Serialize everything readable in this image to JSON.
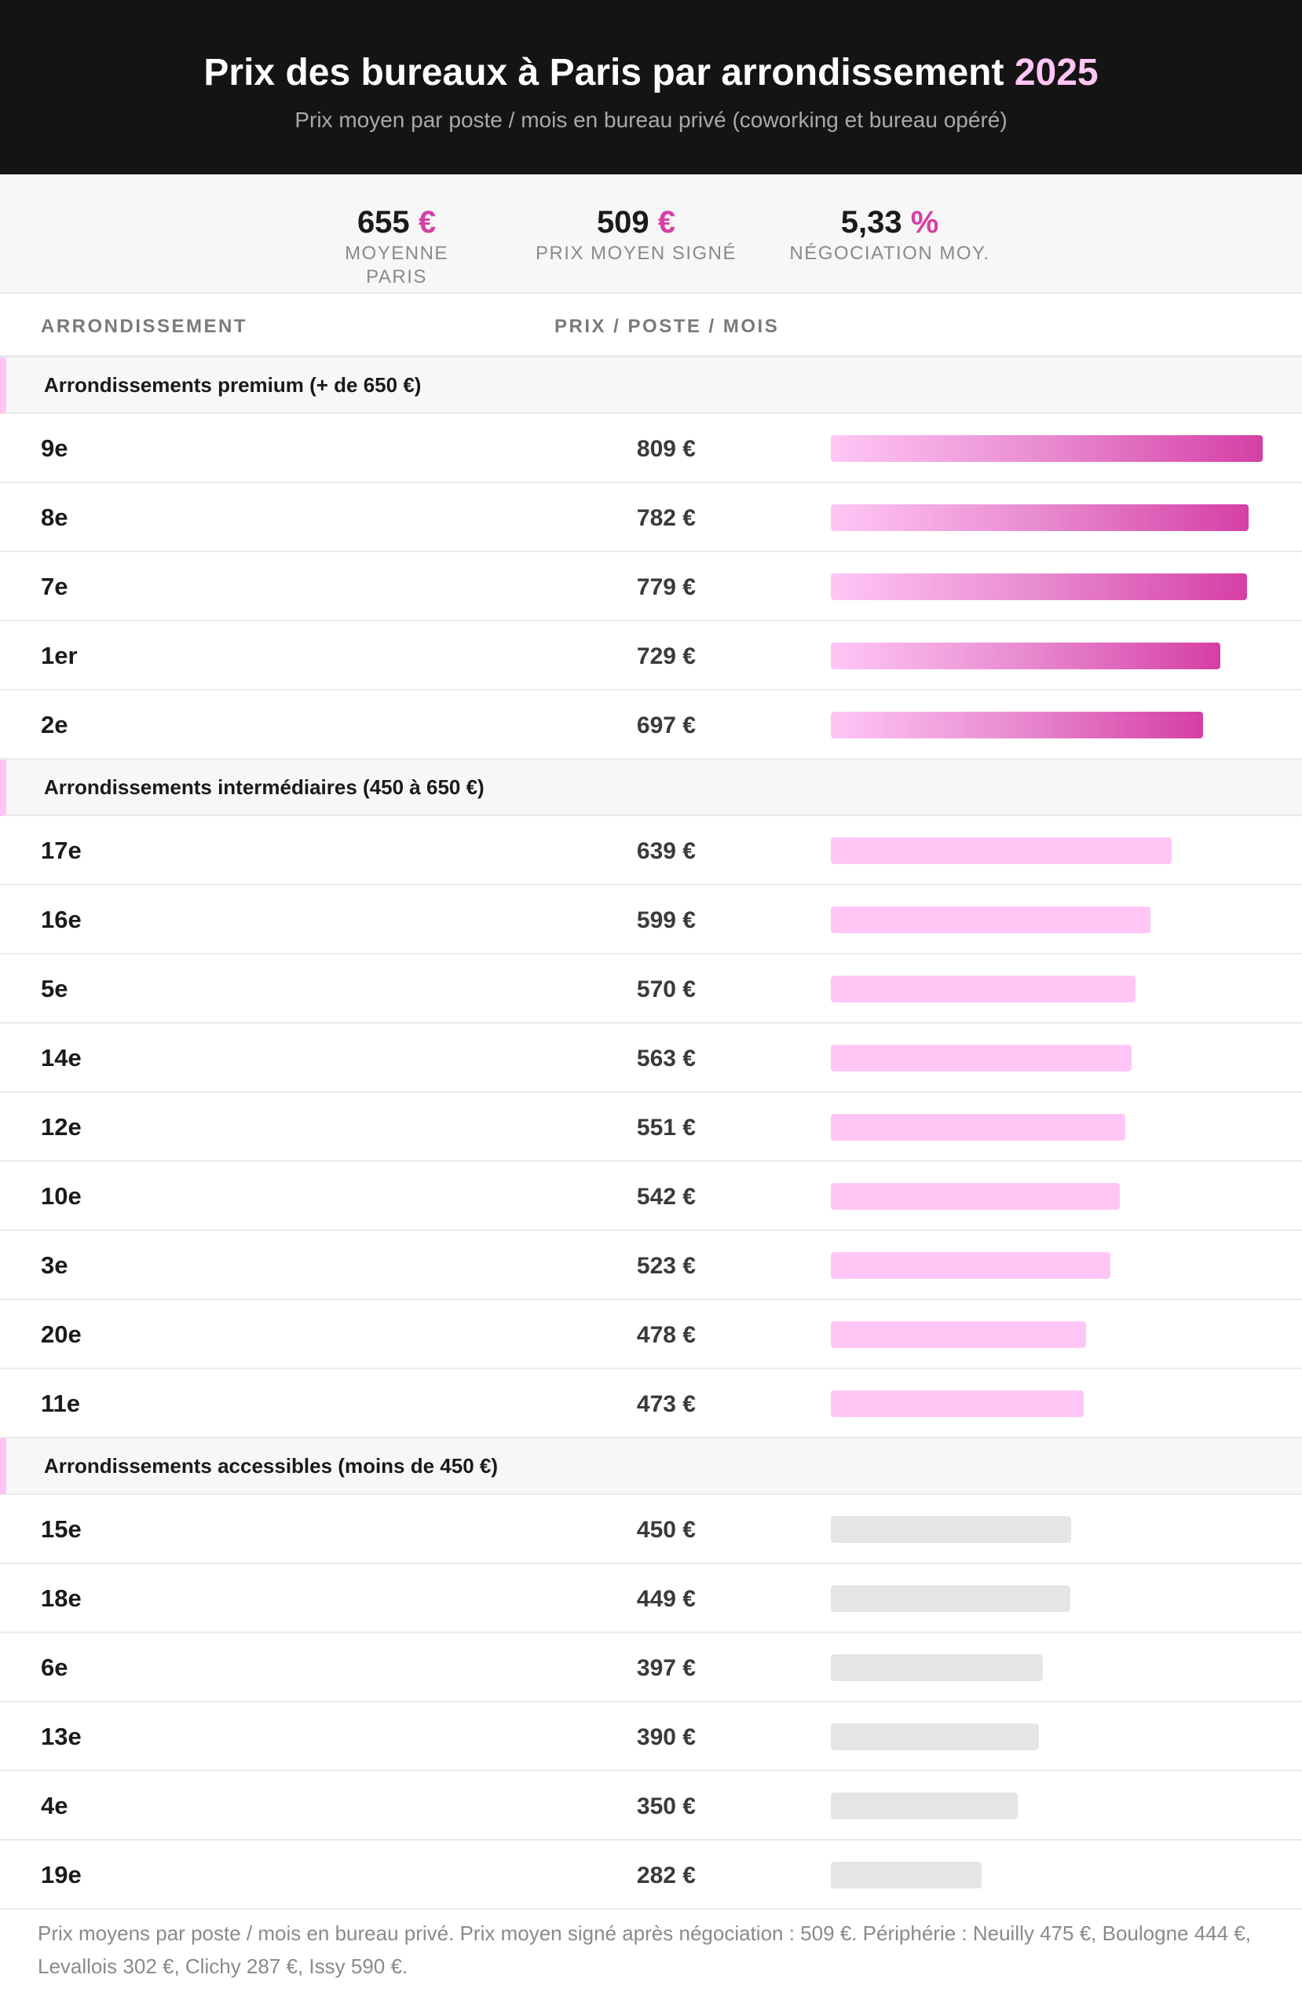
{
  "header": {
    "title": "Prix des bureaux à Paris par arrondissement",
    "year": "2025",
    "subtitle": "Prix moyen par poste / mois en bureau privé (coworking et bureau opéré)"
  },
  "stats": [
    {
      "value": "655",
      "unit": "€",
      "label": "MOYENNE PARIS"
    },
    {
      "value": "509",
      "unit": "€",
      "label": "PRIX MOYEN SIGNÉ"
    },
    {
      "value": "5,33",
      "unit": "%",
      "label": "NÉGOCIATION MOY."
    }
  ],
  "columns": {
    "arr": "ARRONDISSEMENT",
    "price": "PRIX / POSTE / MOIS"
  },
  "colors": {
    "accent": "#d63fa5",
    "pink_light": "#ffc6f5",
    "grey_bar": "#e5e5e5"
  },
  "chart_data": {
    "type": "bar",
    "orientation": "horizontal",
    "unit": "€",
    "groups": [
      {
        "label": "Arrondissements premium (+ de 650 €)",
        "style": "premium",
        "rows": [
          {
            "arr": "9e",
            "value": 809,
            "price": "809 €"
          },
          {
            "arr": "8e",
            "value": 782,
            "price": "782 €"
          },
          {
            "arr": "7e",
            "value": 779,
            "price": "779 €"
          },
          {
            "arr": "1er",
            "value": 729,
            "price": "729 €"
          },
          {
            "arr": "2e",
            "value": 697,
            "price": "697 €"
          }
        ]
      },
      {
        "label": "Arrondissements intermédiaires (450 à 650 €)",
        "style": "mid",
        "rows": [
          {
            "arr": "17e",
            "value": 639,
            "price": "639 €"
          },
          {
            "arr": "16e",
            "value": 599,
            "price": "599 €"
          },
          {
            "arr": "5e",
            "value": 570,
            "price": "570 €"
          },
          {
            "arr": "14e",
            "value": 563,
            "price": "563 €"
          },
          {
            "arr": "12e",
            "value": 551,
            "price": "551 €"
          },
          {
            "arr": "10e",
            "value": 542,
            "price": "542 €"
          },
          {
            "arr": "3e",
            "value": 523,
            "price": "523 €"
          },
          {
            "arr": "20e",
            "value": 478,
            "price": "478 €"
          },
          {
            "arr": "11e",
            "value": 473,
            "price": "473 €"
          }
        ]
      },
      {
        "label": "Arrondissements accessibles (moins de 450 €)",
        "style": "low",
        "rows": [
          {
            "arr": "15e",
            "value": 450,
            "price": "450 €"
          },
          {
            "arr": "18e",
            "value": 449,
            "price": "449 €"
          },
          {
            "arr": "6e",
            "value": 397,
            "price": "397 €"
          },
          {
            "arr": "13e",
            "value": 390,
            "price": "390 €"
          },
          {
            "arr": "4e",
            "value": 350,
            "price": "350 €"
          },
          {
            "arr": "19e",
            "value": 282,
            "price": "282 €"
          }
        ]
      }
    ]
  },
  "footnote": "Prix moyens par poste / mois en bureau privé. Prix moyen signé après négociation : 509 €. Périphérie : Neuilly 475 €, Boulogne 444 €, Levallois 302 €, Clichy 287 €, Issy 590 €."
}
